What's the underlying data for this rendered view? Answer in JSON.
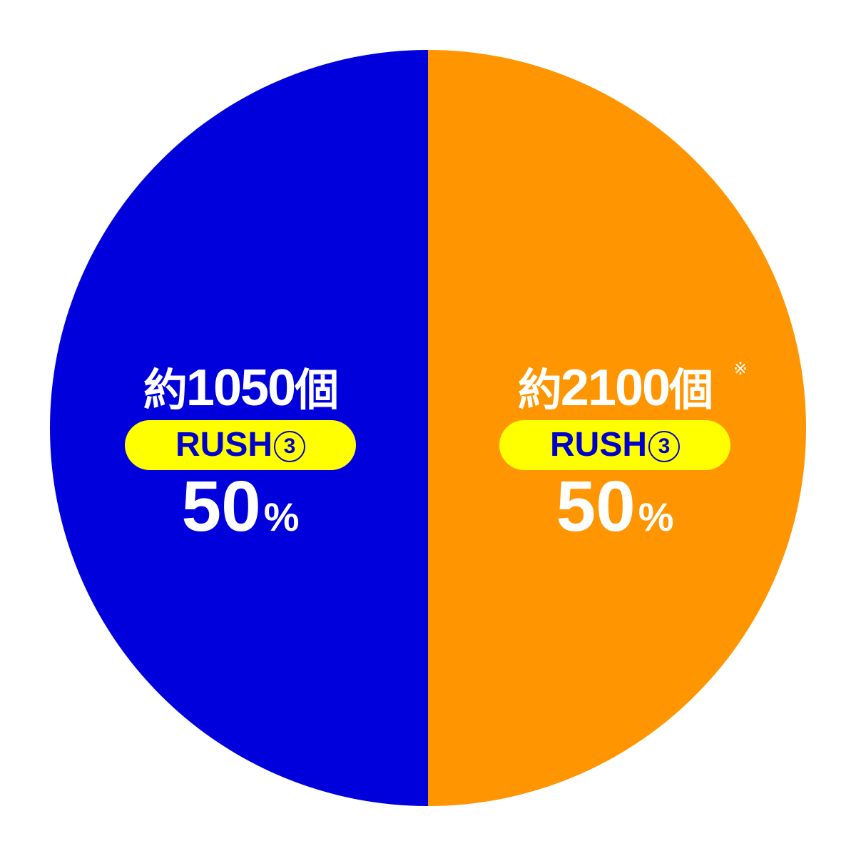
{
  "chart_data": {
    "type": "pie",
    "slices": [
      {
        "value": 50,
        "color": "#0000DD",
        "amount_prefix": "約",
        "amount": "1050",
        "amount_suffix": "個",
        "note": "",
        "badge": "RUSH",
        "badge_number": "3",
        "percent": "50",
        "percent_sign": "%"
      },
      {
        "value": 50,
        "color": "#FF9500",
        "amount_prefix": "約",
        "amount": "2100",
        "amount_suffix": "個",
        "note": "※",
        "badge": "RUSH",
        "badge_number": "3",
        "percent": "50",
        "percent_sign": "%"
      }
    ],
    "badge_color": "#FFFF00",
    "badge_text_color": "#0000CC",
    "start": "top",
    "direction": "counterclockwise"
  }
}
